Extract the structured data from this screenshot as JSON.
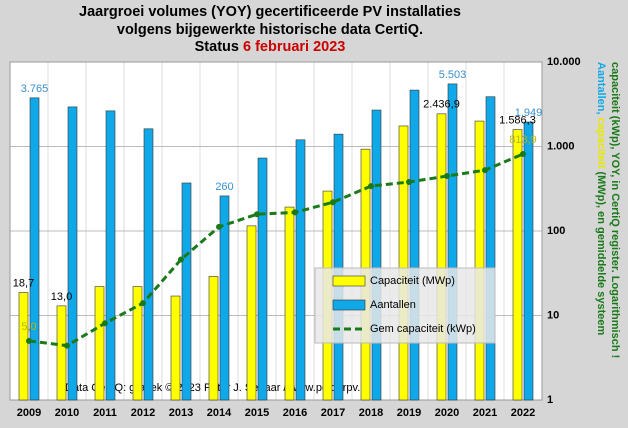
{
  "chart_data": {
    "type": "bar",
    "title": [
      "Jaargroei volumes (YOY) gecertificeerde  PV installaties",
      "volgens bijgewerkte historische data CertiQ.",
      "Status"
    ],
    "title_date": "6 februari 2023",
    "right_label": {
      "line1": [
        "Aantallen,",
        "capaciteit",
        "(MWp), en gemiddelde systeem"
      ],
      "line2": "capaciteit (kWp), YOY, in CertiQ register. Logarithmisch !"
    },
    "credit": "Data CertiQ:  grafiek © 2023  Peter J. Segaar / www.polderpv.nl",
    "categories": [
      "2009",
      "2010",
      "2011",
      "2012",
      "2013",
      "2014",
      "2015",
      "2016",
      "2017",
      "2018",
      "2019",
      "2020",
      "2021",
      "2022"
    ],
    "series": [
      {
        "name": "Capaciteit (MWp)",
        "type": "bar",
        "color": "#ffff00",
        "values": [
          18.7,
          13.0,
          22,
          22,
          17,
          29,
          115,
          192,
          297,
          930,
          1750,
          2436.9,
          2000,
          1586.3
        ],
        "value_labels": [
          "18,7",
          "13,0",
          null,
          null,
          null,
          null,
          null,
          null,
          null,
          null,
          null,
          "2.436,9",
          null,
          "1.586,3"
        ],
        "label_color": "#000000"
      },
      {
        "name": "Aantallen",
        "type": "bar",
        "color": "#10a8e8",
        "values": [
          3765,
          2940,
          2640,
          1620,
          370,
          260,
          730,
          1200,
          1400,
          2700,
          4650,
          5503,
          3880,
          1949
        ],
        "value_labels": [
          "3.765",
          null,
          null,
          null,
          null,
          "260",
          null,
          null,
          null,
          null,
          null,
          "5.503",
          null,
          "1.949"
        ],
        "label_color": "#3a8fd0"
      },
      {
        "name": "Gem capaciteit (kWp)",
        "type": "line",
        "color": "#1a7a1a",
        "linestyle": "dashed",
        "values": [
          5.0,
          4.4,
          8.1,
          14,
          46,
          112,
          158,
          166,
          219,
          340,
          380,
          447,
          525,
          813.9
        ],
        "value_labels": [
          "5,0",
          null,
          null,
          null,
          null,
          null,
          null,
          null,
          null,
          null,
          null,
          null,
          null,
          "813,9"
        ],
        "label_color": "#b8b800"
      }
    ],
    "log_scale": true,
    "ylim": [
      1,
      10000
    ],
    "yticks": [
      1,
      10,
      100,
      {
        "value": 1000,
        "label": "1.000"
      },
      {
        "value": 10000,
        "label": "10.000"
      }
    ],
    "grid": true,
    "legend": "lower right"
  }
}
